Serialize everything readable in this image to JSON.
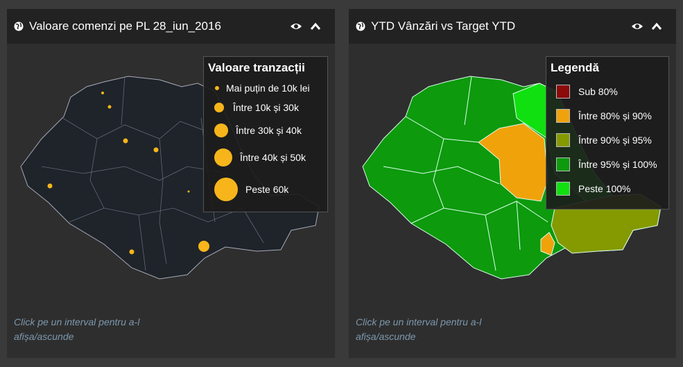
{
  "panels": [
    {
      "title": "Valoare comenzi pe PL 28_iun_2016",
      "legend": {
        "title": "Valoare tranzacții",
        "items": [
          "Mai puțin de 10k lei",
          "Între 10k și 30k",
          "Între 30k și 40k",
          "Între 40k și 50k",
          "Peste 60k"
        ]
      },
      "footer": "Click pe un interval pentru a-l afișa/ascunde"
    },
    {
      "title": "YTD Vânzări vs Target YTD",
      "legend": {
        "title": "Legendă",
        "items": [
          "Sub 80%",
          "Între 80% și 90%",
          "Între 90% și 95%",
          "Între 95% și 100%",
          "Peste 100%"
        ]
      },
      "footer": "Click pe un interval pentru a-l afișa/ascunde"
    }
  ]
}
